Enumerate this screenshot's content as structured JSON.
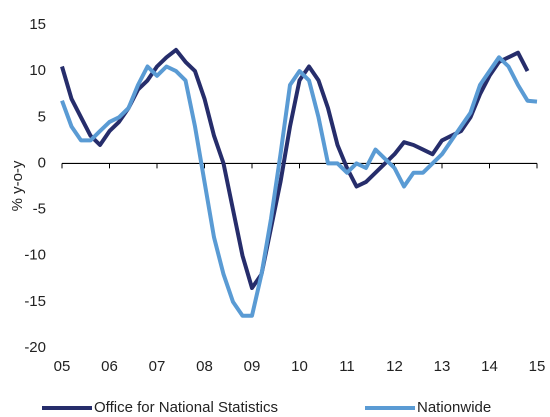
{
  "chart_data": {
    "type": "line",
    "ylabel": "% y-o-y",
    "x": [
      5.0,
      5.2,
      5.4,
      5.6,
      5.8,
      6.0,
      6.2,
      6.4,
      6.6,
      6.8,
      7.0,
      7.2,
      7.4,
      7.6,
      7.8,
      8.0,
      8.2,
      8.4,
      8.6,
      8.8,
      9.0,
      9.2,
      9.4,
      9.6,
      9.8,
      10.0,
      10.2,
      10.4,
      10.6,
      10.8,
      11.0,
      11.2,
      11.4,
      11.6,
      11.8,
      12.0,
      12.2,
      12.4,
      12.6,
      12.8,
      13.0,
      13.2,
      13.4,
      13.6,
      13.8,
      14.0,
      14.2,
      14.4,
      14.6,
      14.8,
      15.0
    ],
    "series": [
      {
        "name": "Office for National Statistics",
        "color": "#262d6b",
        "values": [
          10.5,
          7,
          5,
          3,
          2,
          3.5,
          4.5,
          6,
          8,
          9,
          10.5,
          11.5,
          12.3,
          11,
          10,
          7,
          3,
          0,
          -5,
          -10,
          -13.5,
          -12,
          -7,
          -2,
          4,
          9,
          10.5,
          9,
          6,
          2,
          -0.5,
          -2.5,
          -2,
          -1,
          0,
          1,
          2.3,
          2,
          1.5,
          1,
          2.5,
          3,
          3.5,
          5,
          7.5,
          9.5,
          11,
          11.5,
          12,
          10,
          null
        ]
      },
      {
        "name": "Nationwide",
        "color": "#5a9bd4",
        "values": [
          6.8,
          4,
          2.5,
          2.5,
          3.5,
          4.5,
          5,
          6,
          8.5,
          10.5,
          9.5,
          10.5,
          10,
          9,
          4,
          -2,
          -8,
          -12,
          -15,
          -16.5,
          -16.5,
          -12,
          -6,
          1,
          8.5,
          10,
          9,
          5,
          0,
          0,
          -1,
          0,
          -0.5,
          1.5,
          0.5,
          -0.5,
          -2.5,
          -1,
          -1,
          0,
          1,
          2.5,
          4,
          5.5,
          8.5,
          10,
          11.5,
          10.5,
          8.5,
          6.8,
          6.7
        ]
      }
    ],
    "xlim": [
      5,
      15
    ],
    "xticks": [
      {
        "value": 5,
        "label": "05"
      },
      {
        "value": 6,
        "label": "06"
      },
      {
        "value": 7,
        "label": "07"
      },
      {
        "value": 8,
        "label": "08"
      },
      {
        "value": 9,
        "label": "09"
      },
      10,
      11,
      12,
      13,
      14,
      15
    ],
    "ylim": [
      -20,
      15
    ],
    "yticks": [
      -20,
      -15,
      -10,
      -5,
      0,
      5,
      10,
      15
    ]
  }
}
